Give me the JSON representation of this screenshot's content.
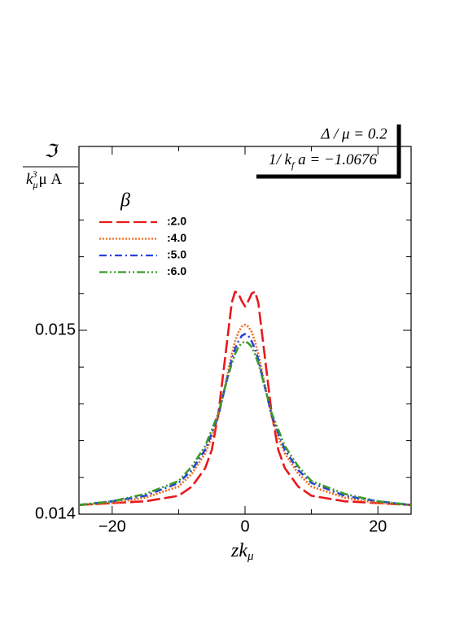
{
  "chart_data": {
    "type": "line",
    "xlabel": [
      "z",
      "k",
      "μ"
    ],
    "ylabel_numerator": "ℑ",
    "ylabel_denominator": [
      "k",
      "μ",
      "3",
      "μ A"
    ],
    "annotation_1": "Δ / μ = 0.2",
    "annotation_2": [
      "1/ ",
      "k",
      "f",
      " a = −1.0676"
    ],
    "legend_title": "β",
    "x": [
      -25,
      -20,
      -15,
      -10,
      -8,
      -6,
      -5,
      -4,
      -3,
      -2,
      -1.5,
      -1,
      -0.5,
      0,
      0.5,
      1,
      1.5,
      2,
      3,
      4,
      5,
      6,
      8,
      10,
      15,
      20,
      25
    ],
    "series": [
      {
        "name": ":2.0",
        "color": "#e8191c",
        "dash": "16 5",
        "values": [
          0.01405,
          0.01406,
          0.01407,
          0.0141,
          0.01415,
          0.01425,
          0.01435,
          0.01455,
          0.01485,
          0.01515,
          0.01521,
          0.0152,
          0.01516,
          0.01513,
          0.01516,
          0.0152,
          0.01521,
          0.01515,
          0.01485,
          0.01455,
          0.01435,
          0.01425,
          0.01415,
          0.0141,
          0.01407,
          0.01406,
          0.01405
        ]
      },
      {
        "name": ":4.0",
        "color": "#f06a1a",
        "dash": "2 2",
        "values": [
          0.01405,
          0.01406,
          0.01409,
          0.01415,
          0.01422,
          0.01433,
          0.01442,
          0.01453,
          0.0147,
          0.01487,
          0.01494,
          0.01499,
          0.01502,
          0.01503,
          0.01502,
          0.01499,
          0.01494,
          0.01487,
          0.0147,
          0.01453,
          0.01442,
          0.01433,
          0.01422,
          0.01415,
          0.01409,
          0.01406,
          0.01405
        ]
      },
      {
        "name": ":5.0",
        "color": "#2741e0",
        "dash": "9 4 2 4",
        "values": [
          0.01405,
          0.01407,
          0.0141,
          0.01417,
          0.01424,
          0.01435,
          0.01444,
          0.01454,
          0.01469,
          0.01484,
          0.0149,
          0.01494,
          0.01497,
          0.01498,
          0.01497,
          0.01494,
          0.0149,
          0.01484,
          0.01469,
          0.01454,
          0.01444,
          0.01435,
          0.01424,
          0.01417,
          0.0141,
          0.01407,
          0.01405
        ]
      },
      {
        "name": ":6.0",
        "color": "#3a9a2a",
        "dash": "10 3 2 3 2 3",
        "values": [
          0.01405,
          0.01407,
          0.01411,
          0.01418,
          0.01426,
          0.01437,
          0.01446,
          0.01455,
          0.01469,
          0.01482,
          0.01487,
          0.01491,
          0.01493,
          0.01494,
          0.01493,
          0.01491,
          0.01487,
          0.01482,
          0.01469,
          0.01455,
          0.01446,
          0.01437,
          0.01426,
          0.01418,
          0.01411,
          0.01407,
          0.01405
        ]
      }
    ],
    "xlim": [
      -25,
      25
    ],
    "xticks": [
      {
        "value": -20,
        "label": "−20"
      },
      0,
      20
    ],
    "minor_xticks": [
      -10,
      10
    ],
    "ylim": [
      0.014,
      0.016
    ],
    "yticks": [
      0.014,
      0.015
    ],
    "minor_yticks": [
      0.0142,
      0.0144,
      0.0146,
      0.0148,
      0.0152,
      0.0154,
      0.0156,
      0.0158
    ],
    "grid": false
  }
}
